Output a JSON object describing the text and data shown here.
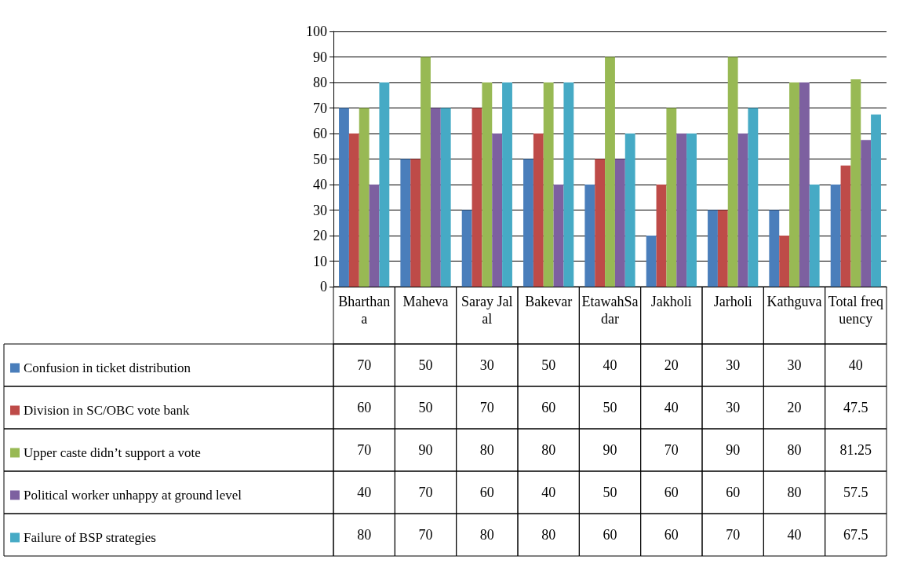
{
  "chart_data": {
    "type": "bar",
    "categories": [
      "Bharthana",
      "Maheva",
      "Saray Jalal",
      "Bakevar",
      "EtawahSadar",
      "Jakholi",
      "Jarholi",
      "Kathguva",
      "Total frequency"
    ],
    "series": [
      {
        "name": "Confusion in ticket distribution",
        "color": "#4a7ebb",
        "values": [
          70,
          50,
          30,
          50,
          40,
          20,
          30,
          30,
          40
        ]
      },
      {
        "name": "Division in SC/OBC vote bank",
        "color": "#be4b48",
        "values": [
          60,
          50,
          70,
          60,
          50,
          40,
          30,
          20,
          47.5
        ]
      },
      {
        "name": "Upper caste didn’t support a vote",
        "color": "#98b954",
        "values": [
          70,
          90,
          80,
          80,
          90,
          70,
          90,
          80,
          81.25
        ]
      },
      {
        "name": "Political worker unhappy at ground level",
        "color": "#7d60a0",
        "values": [
          40,
          70,
          60,
          40,
          50,
          60,
          60,
          80,
          57.5
        ]
      },
      {
        "name": "Failure of BSP strategies",
        "color": "#46aac5",
        "values": [
          80,
          70,
          80,
          80,
          60,
          60,
          70,
          40,
          67.5
        ]
      }
    ],
    "ylim": [
      0,
      100
    ],
    "yticks": [
      0,
      10,
      20,
      30,
      40,
      50,
      60,
      70,
      80,
      90,
      100
    ],
    "grid": "y",
    "legend": "bottom",
    "data_labels": true
  }
}
